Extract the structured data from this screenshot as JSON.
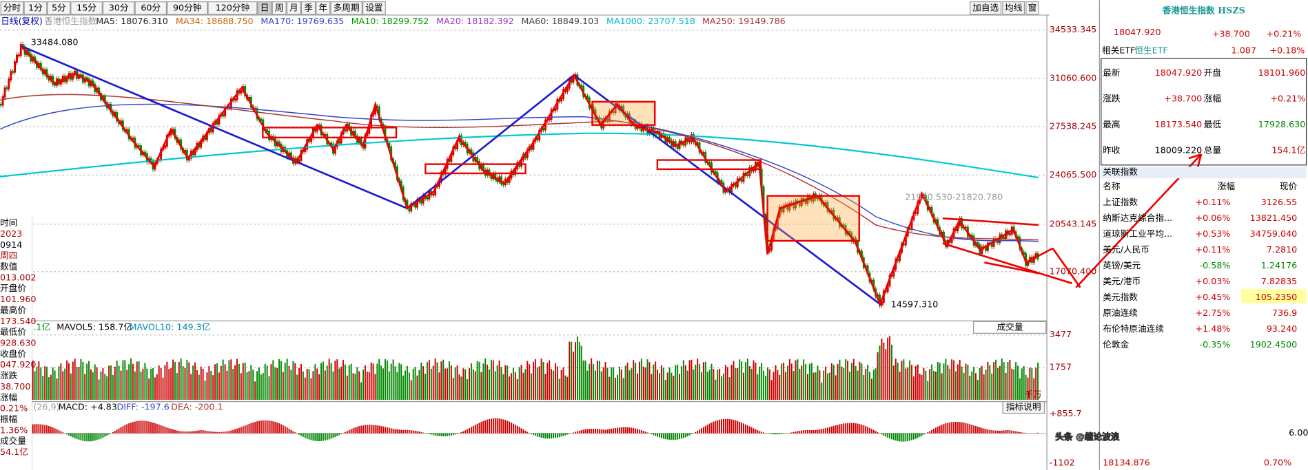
{
  "toolbar": {
    "periods": [
      "分时",
      "1分",
      "5分",
      "15分",
      "30分",
      "60分",
      "90分钟",
      "120分钟",
      "日",
      "周",
      "月",
      "季",
      "年",
      "多周期",
      "设置"
    ],
    "tools": [
      "加自选",
      "均线",
      "窗"
    ]
  },
  "info": {
    "period": "日线(复权)",
    "name": "香港恒生指数",
    "ma": [
      {
        "text": "MA5: 18076.310",
        "color": "#222222"
      },
      {
        "text": "MA34: 18688.750",
        "color": "#cc6600"
      },
      {
        "text": "MA170: 19769.635",
        "color": "#3344cc"
      },
      {
        "text": "MA10: 18299.752",
        "color": "#009900"
      },
      {
        "text": "MA20: 18182.392",
        "color": "#9933cc"
      },
      {
        "text": "MA60: 18849.103",
        "color": "#444444"
      },
      {
        "text": "MA1000: 23707.518",
        "color": "#00bbcc"
      },
      {
        "text": "MA250: 19149.786",
        "color": "#aa3333"
      }
    ]
  },
  "price_axis": [
    "34533.345",
    "31060.600",
    "27538.245",
    "24065.500",
    "20543.145",
    "17070.400"
  ],
  "annotations": {
    "high": "33484.080",
    "low": "14597.310",
    "range": "21930.530-21820.780"
  },
  "volume": {
    "prefix": ".1亿",
    "mavol5": "MAVOL5: 158.7亿",
    "mavol10": "MAVOL10: 149.3亿",
    "selector": "成交量",
    "axis": [
      "3477",
      "1757"
    ],
    "unit": "千万"
  },
  "macd": {
    "params": "(26,9)",
    "macd": "MACD: +4.83",
    "diff": "DIFF: -197.6",
    "dea": "DEA: -200.1",
    "button": "指标说明",
    "axis": [
      "+855.7",
      "-1102"
    ]
  },
  "left_panel": [
    "时间",
    "2023",
    "0914",
    "周四",
    "数值",
    "013.002",
    "开盘价",
    "101.960",
    "最高价",
    "173.540",
    "最低价",
    "928.630",
    "收盘价",
    "047.920",
    "涨跌",
    "38.700",
    "涨幅",
    "0.21%",
    "振幅",
    "1.36%",
    "成交量",
    "54.1亿"
  ],
  "quote": {
    "title": "香港恒生指数 HSZS",
    "price": "18047.920",
    "change": "+38.700",
    "pct": "+0.21%",
    "etf_label": "相关ETF:",
    "etf_name": "恒生ETF",
    "etf_price": "1.087",
    "etf_pct": "+0.18%",
    "rows": [
      [
        "最新",
        "18047.920",
        "开盘",
        "18101.960"
      ],
      [
        "涨跌",
        "+38.700",
        "涨幅",
        "+0.21%"
      ],
      [
        "最高",
        "18173.540",
        "最低",
        "17928.630"
      ],
      [
        "昨收",
        "18009.220",
        "总量",
        "154.1亿"
      ]
    ]
  },
  "related": {
    "title": "关联指数",
    "header": [
      "名称",
      "涨幅",
      "现价"
    ],
    "rows": [
      [
        "上证指数",
        "+0.11%",
        "3126.55"
      ],
      [
        "纳斯达克综合指...",
        "+0.06%",
        "13821.450"
      ],
      [
        "道琼斯工业平均...",
        "+0.53%",
        "34759.040"
      ],
      [
        "美元/人民币",
        "+0.11%",
        "7.2810"
      ],
      [
        "英镑/美元",
        "-0.58%",
        "1.24176"
      ],
      [
        "美元/港币",
        "+0.03%",
        "7.82835"
      ],
      [
        "美元指数",
        "+0.45%",
        "105.2350"
      ],
      [
        "原油连续",
        "+2.75%",
        "736.9"
      ],
      [
        "布伦特原油连续",
        "+1.48%",
        "93.240"
      ],
      [
        "伦敦金",
        "-0.35%",
        "1902.4500"
      ]
    ]
  },
  "footer": {
    "value": "18134.876",
    "pct": "0.70%",
    "right": "6.00"
  },
  "watermark": "头条 @缠论波浪"
}
